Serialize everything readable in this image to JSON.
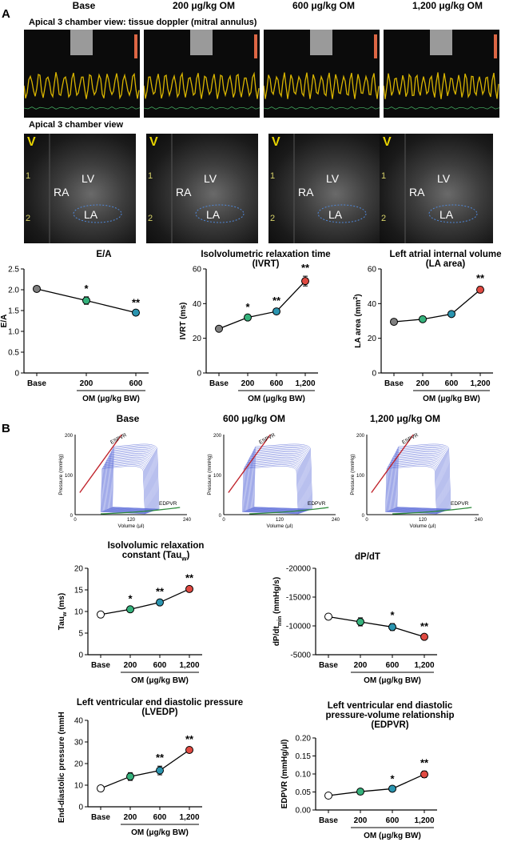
{
  "panel_a": {
    "letter": "A",
    "col_headers": [
      "Base",
      "200 μg/kg OM",
      "600 μg/kg OM",
      "1,200 μg/kg OM"
    ],
    "doppler_title": "Apical 3 chamber view: tissue doppler (mitral annulus)",
    "echo_title": "Apical 3 chamber view",
    "echo_labels": {
      "v": "V",
      "ra": "RA",
      "lv": "LV",
      "la": "LA",
      "tick1": "1",
      "tick2": "2"
    }
  },
  "panel_b": {
    "letter": "B",
    "pv_titles": [
      "Base",
      "600 μg/kg OM",
      "1,200 μg/kg OM"
    ],
    "pv_labels": {
      "ylabel": "Pressure (mmHg)",
      "xlabel": "Volume (μl)",
      "espvr": "ESPVR",
      "edpvr": "EDPVR",
      "y_ticks": [
        "0",
        "100",
        "200"
      ],
      "x_ticks": [
        "0",
        "120",
        "240"
      ]
    }
  },
  "chart_data": [
    {
      "id": "ea",
      "type": "line",
      "title": "E/A",
      "title2": "",
      "ylabel": "E/A",
      "ylabel_sub": "",
      "ylabel_sup": "",
      "ylabel_tail": "",
      "categories": [
        "Base",
        "200",
        "600"
      ],
      "values": [
        2.02,
        1.74,
        1.45
      ],
      "errors": [
        0.05,
        0.09,
        0.04
      ],
      "colors": [
        "#7f7f7f",
        "#35b27c",
        "#2b95b0"
      ],
      "sig": [
        "",
        "*",
        "**"
      ],
      "ylim": [
        0,
        2.5
      ],
      "yticks": [
        "0",
        "0.5",
        "1.0",
        "1.5",
        "2.0",
        "2.5"
      ],
      "ytick_values": [
        0,
        0.5,
        1.0,
        1.5,
        2.0,
        2.5
      ],
      "xlabel": "OM (μg/kg BW)"
    },
    {
      "id": "ivrt",
      "type": "line",
      "title": "Isolvolumetric relaxation time",
      "title2": "(IVRT)",
      "ylabel": "IVRT (ms)",
      "ylabel_sub": "",
      "ylabel_sup": "",
      "ylabel_tail": "",
      "categories": [
        "Base",
        "200",
        "600",
        "1,200"
      ],
      "values": [
        25.5,
        32,
        35.5,
        53
      ],
      "errors": [
        1.0,
        1.2,
        1.5,
        2.8
      ],
      "colors": [
        "#808080",
        "#35b27c",
        "#2b95b0",
        "#e04a42"
      ],
      "sig": [
        "",
        "*",
        "**",
        "**"
      ],
      "ylim": [
        0,
        60
      ],
      "yticks": [
        "0",
        "20",
        "40",
        "60"
      ],
      "ytick_values": [
        0,
        20,
        40,
        60
      ],
      "xlabel": "OM (μg/kg BW)"
    },
    {
      "id": "la",
      "type": "line",
      "title": "Left atrial internal volume",
      "title2": "(LA area)",
      "ylabel": "LA area (mm",
      "ylabel_sub": "",
      "ylabel_sup": "2",
      "ylabel_tail": ")",
      "categories": [
        "Base",
        "200",
        "600",
        "1,200"
      ],
      "values": [
        29.5,
        31,
        34,
        48
      ],
      "errors": [
        1.2,
        1.0,
        1.0,
        1.8
      ],
      "colors": [
        "#808080",
        "#35b27c",
        "#2b95b0",
        "#e04a42"
      ],
      "sig": [
        "",
        "",
        "",
        "**"
      ],
      "ylim": [
        0,
        60
      ],
      "yticks": [
        "0",
        "20",
        "40",
        "60"
      ],
      "ytick_values": [
        0,
        20,
        40,
        60
      ],
      "xlabel": "OM (μg/kg BW)"
    },
    {
      "id": "tau",
      "type": "line",
      "title": "Isolvolumic relaxation",
      "title2": "constant (Tau",
      "title2_sub": "w",
      "title2_tail": ")",
      "ylabel": "Tau",
      "ylabel_sub": "w",
      "ylabel_sup": "",
      "ylabel_tail": " (ms)",
      "categories": [
        "Base",
        "200",
        "600",
        "1,200"
      ],
      "values": [
        9.3,
        10.5,
        12.1,
        15.2
      ],
      "errors": [
        0.3,
        0.5,
        0.6,
        0.6
      ],
      "colors": [
        "#ffffff",
        "#35b27c",
        "#2b95b0",
        "#e04a42"
      ],
      "sig": [
        "",
        "*",
        "**",
        "**"
      ],
      "ylim": [
        0,
        20
      ],
      "yticks": [
        "0",
        "5",
        "10",
        "15",
        "20"
      ],
      "ytick_values": [
        0,
        5,
        10,
        15,
        20
      ],
      "xlabel": "OM (μg/kg  BW)"
    },
    {
      "id": "dpdt",
      "type": "line",
      "title": "dP/dT",
      "title2": "",
      "ylabel": "dP/dt",
      "ylabel_sub": "min",
      "ylabel_sup": "",
      "ylabel_tail": " (mmHg/s)",
      "categories": [
        "Base",
        "200",
        "600",
        "1,200"
      ],
      "values": [
        -11600,
        -10700,
        -9800,
        -8100
      ],
      "errors": [
        500,
        700,
        600,
        400
      ],
      "colors": [
        "#ffffff",
        "#35b27c",
        "#2b95b0",
        "#e04a42"
      ],
      "sig": [
        "",
        "",
        "*",
        "**"
      ],
      "ylim": [
        -5000,
        -20000
      ],
      "yticks": [
        "-5000",
        "-10000",
        "-15000",
        "-20000"
      ],
      "ytick_values": [
        -5000,
        -10000,
        -15000,
        -20000
      ],
      "xlabel": "OM (μg/kg  BW)"
    },
    {
      "id": "lvedp",
      "type": "line",
      "title": "Left ventricular end diastolic pressure",
      "title2": "(LVEDP)",
      "ylabel": "End-diastolic pressure (mmHg)",
      "ylabel_sub": "",
      "ylabel_sup": "",
      "ylabel_tail": "",
      "categories": [
        "Base",
        "200",
        "600",
        "1,200"
      ],
      "values": [
        8.5,
        14,
        16.8,
        26.3
      ],
      "errors": [
        0.5,
        1.8,
        2.0,
        1.2
      ],
      "colors": [
        "#ffffff",
        "#35b27c",
        "#2b95b0",
        "#e04a42"
      ],
      "sig": [
        "",
        "",
        "**",
        "**"
      ],
      "ylim": [
        0,
        40
      ],
      "yticks": [
        "0",
        "10",
        "20",
        "30",
        "40"
      ],
      "ytick_values": [
        0,
        10,
        20,
        30,
        40
      ],
      "xlabel": "OM (μg/kg  BW)"
    },
    {
      "id": "edpvr",
      "type": "line",
      "title": "Left ventricular end diastolic",
      "title2": "pressure-volume relationship",
      "title3": "(EDPVR)",
      "ylabel": "EDPVR (mmHg/μl)",
      "ylabel_sub": "",
      "ylabel_sup": "",
      "ylabel_tail": "",
      "categories": [
        "Base",
        "200",
        "600",
        "1,200"
      ],
      "values": [
        0.04,
        0.051,
        0.059,
        0.099
      ],
      "errors": [
        0.002,
        0.003,
        0.004,
        0.009
      ],
      "colors": [
        "#ffffff",
        "#35b27c",
        "#2b95b0",
        "#e04a42"
      ],
      "sig": [
        "",
        "",
        "*",
        "**"
      ],
      "ylim": [
        0,
        0.2
      ],
      "yticks": [
        "0.00",
        "0.05",
        "0.10",
        "0.15",
        "0.20"
      ],
      "ytick_values": [
        0,
        0.05,
        0.1,
        0.15,
        0.2
      ],
      "xlabel": "OM (μg/kg  BW)"
    }
  ]
}
